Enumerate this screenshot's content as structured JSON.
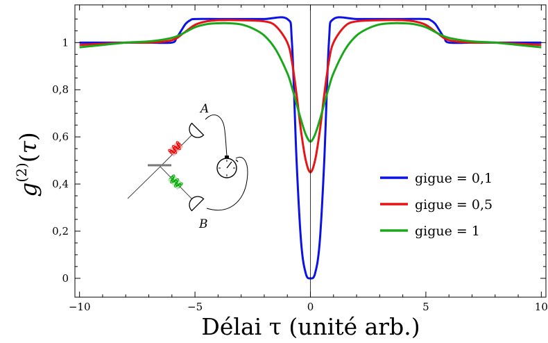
{
  "chart_data": {
    "type": "line",
    "xlabel": "Délai τ (unité arb.)",
    "ylabel": "g(2)(τ)",
    "xlim": [
      -10.2,
      10.2
    ],
    "ylim": [
      -0.08,
      1.16
    ],
    "x_ticks": [
      -10,
      -5,
      0,
      5,
      10
    ],
    "x_tick_labels": [
      "−10",
      "−5",
      "0",
      "5",
      "10"
    ],
    "y_ticks": [
      0,
      0.2,
      0.4,
      0.6,
      0.8,
      1.0
    ],
    "y_tick_labels": [
      "0",
      "0,2",
      "0,4",
      "0,6",
      "0,8",
      "1"
    ],
    "grid": false,
    "legend_position": "right",
    "series": [
      {
        "name": "gigue = 0,1",
        "color": "#0a12e6",
        "x": [
          -10,
          -9,
          -8,
          -7,
          -6,
          -5.8,
          -5.6,
          -5.4,
          -5.2,
          -5,
          -4,
          -3,
          -2,
          -1,
          -0.8,
          -0.6,
          -0.4,
          -0.2,
          0,
          0.2,
          0.4,
          0.6,
          0.8,
          1,
          2,
          3,
          4,
          5,
          5.2,
          5.4,
          5.6,
          5.8,
          6,
          7,
          8,
          9,
          10
        ],
        "values": [
          1.0,
          1.0,
          1.0,
          1.0,
          1.0,
          1.02,
          1.05,
          1.08,
          1.095,
          1.1,
          1.1,
          1.1,
          1.1,
          1.1,
          1.0,
          0.5,
          0.15,
          0.02,
          0.0,
          0.02,
          0.15,
          0.5,
          1.0,
          1.1,
          1.1,
          1.1,
          1.1,
          1.1,
          1.095,
          1.08,
          1.05,
          1.02,
          1.0,
          1.0,
          1.0,
          1.0,
          1.0
        ]
      },
      {
        "name": "gigue = 0,5",
        "color": "#e61414",
        "x": [
          -10,
          -9,
          -8,
          -7,
          -6,
          -5.5,
          -5,
          -4.5,
          -4,
          -3,
          -2,
          -1.5,
          -1,
          -0.8,
          -0.6,
          -0.4,
          -0.2,
          0,
          0.2,
          0.4,
          0.6,
          0.8,
          1,
          1.5,
          2,
          3,
          4,
          4.5,
          5,
          5.5,
          6,
          7,
          8,
          9,
          10
        ],
        "values": [
          0.99,
          0.995,
          1.0,
          1.0,
          1.01,
          1.04,
          1.075,
          1.09,
          1.095,
          1.095,
          1.09,
          1.07,
          1.0,
          0.92,
          0.78,
          0.62,
          0.5,
          0.45,
          0.5,
          0.62,
          0.78,
          0.92,
          1.0,
          1.07,
          1.09,
          1.095,
          1.095,
          1.09,
          1.075,
          1.04,
          1.01,
          1.0,
          1.0,
          0.995,
          0.99
        ]
      },
      {
        "name": "gigue = 1",
        "color": "#1aa81a",
        "x": [
          -10,
          -9,
          -8,
          -7,
          -6,
          -5.5,
          -5,
          -4.5,
          -4,
          -3.5,
          -3,
          -2.5,
          -2,
          -1.5,
          -1,
          -0.8,
          -0.6,
          -0.4,
          -0.2,
          0,
          0.2,
          0.4,
          0.6,
          0.8,
          1,
          1.5,
          2,
          2.5,
          3,
          3.5,
          4,
          4.5,
          5,
          5.5,
          6,
          7,
          8,
          9,
          10
        ],
        "values": [
          0.98,
          0.99,
          1.0,
          1.005,
          1.02,
          1.04,
          1.065,
          1.078,
          1.082,
          1.082,
          1.077,
          1.06,
          1.03,
          0.97,
          0.87,
          0.81,
          0.74,
          0.67,
          0.61,
          0.58,
          0.61,
          0.67,
          0.74,
          0.81,
          0.87,
          0.97,
          1.03,
          1.06,
          1.077,
          1.082,
          1.082,
          1.078,
          1.065,
          1.04,
          1.02,
          1.005,
          1.0,
          0.99,
          0.98
        ]
      }
    ]
  },
  "inset": {
    "label_a": "A",
    "label_b": "B"
  }
}
